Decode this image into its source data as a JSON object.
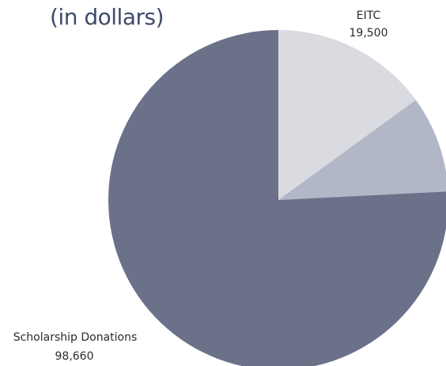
{
  "chart_data": {
    "type": "pie",
    "title": "(in dollars)",
    "slices": [
      {
        "label": "EITC",
        "value_label": "19,500",
        "value": 19500,
        "color": "#dadbe1"
      },
      {
        "label": "",
        "value_label": "",
        "value": 12000,
        "color": "#b2b7c8"
      },
      {
        "label": "Scholarship Donations",
        "value_label": "98,660",
        "value": 98660,
        "color": "#6a7189"
      }
    ],
    "start_angle_deg": 0,
    "direction": "clockwise"
  }
}
